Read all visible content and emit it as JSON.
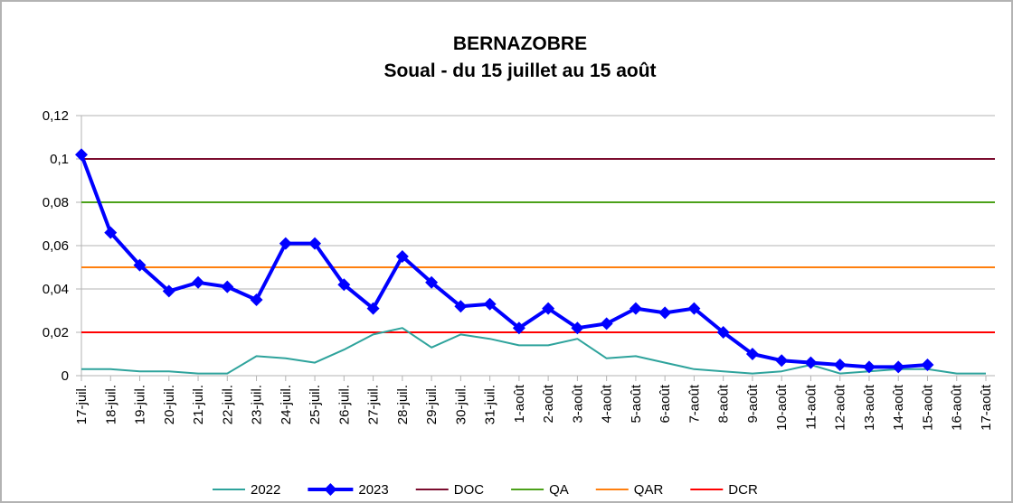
{
  "chart_data": {
    "type": "line",
    "title": "BERNAZOBRE",
    "subtitle": "Soual - du 15 juillet au 15 août",
    "categories": [
      "17-juil.",
      "18-juil.",
      "19-juil.",
      "20-juil.",
      "21-juil.",
      "22-juil.",
      "23-juil.",
      "24-juil.",
      "25-juil.",
      "26-juil.",
      "27-juil.",
      "28-juil.",
      "29-juil.",
      "30-juil.",
      "31-juil.",
      "1-août",
      "2-août",
      "3-août",
      "4-août",
      "5-août",
      "6-août",
      "7-août",
      "8-août",
      "9-août",
      "10-août",
      "11-août",
      "12-août",
      "13-août",
      "14-août",
      "15-août",
      "16-août",
      "17-août"
    ],
    "series": [
      {
        "name": "2022",
        "color": "#2ea39c",
        "width": 2,
        "markers": false,
        "values": [
          0.003,
          0.003,
          0.002,
          0.002,
          0.001,
          0.001,
          0.009,
          0.008,
          0.006,
          0.012,
          0.019,
          0.022,
          0.013,
          0.019,
          0.017,
          0.014,
          0.014,
          0.017,
          0.008,
          0.009,
          0.006,
          0.003,
          0.002,
          0.001,
          0.002,
          0.005,
          0.001,
          0.002,
          0.003,
          0.003,
          0.001,
          0.001
        ]
      },
      {
        "name": "2023",
        "color": "#0000ff",
        "width": 4,
        "markers": true,
        "values": [
          0.102,
          0.066,
          0.051,
          0.039,
          0.043,
          0.041,
          0.035,
          0.061,
          0.061,
          0.042,
          0.031,
          0.055,
          0.043,
          0.032,
          0.033,
          0.022,
          0.031,
          0.022,
          0.024,
          0.031,
          0.029,
          0.031,
          0.02,
          0.01,
          0.007,
          0.006,
          0.005,
          0.004,
          0.004,
          0.005,
          null,
          null
        ]
      }
    ],
    "thresholds": [
      {
        "name": "DOC",
        "color": "#7b0c2e",
        "value": 0.1
      },
      {
        "name": "QA",
        "color": "#4ca11a",
        "value": 0.08
      },
      {
        "name": "QAR",
        "color": "#ff7f0e",
        "value": 0.05
      },
      {
        "name": "DCR",
        "color": "#ff0000",
        "value": 0.02
      }
    ],
    "ylim": [
      0,
      0.12
    ],
    "yticks": [
      0,
      {
        "value": 0.02,
        "label": "0,02"
      },
      {
        "value": 0.04,
        "label": "0,04"
      },
      {
        "value": 0.06,
        "label": "0,06"
      },
      {
        "value": 0.08,
        "label": "0,08"
      },
      {
        "value": 0.1,
        "label": "0,1"
      },
      {
        "value": 0.12,
        "label": "0,12"
      }
    ],
    "grid": true,
    "legend": "bottom"
  }
}
